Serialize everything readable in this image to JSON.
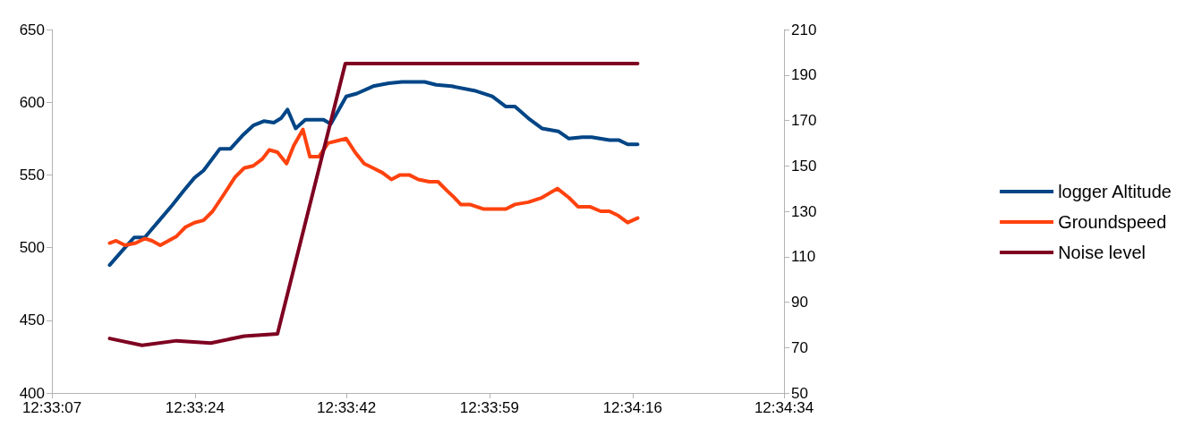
{
  "chart_data": {
    "type": "line",
    "legend": "right",
    "grid": false,
    "marker": "none",
    "line_style": "solid",
    "xlim": [
      12.551944,
      12.576111
    ],
    "xticks": [
      {
        "value": 12.551944,
        "label": "12:33:07"
      },
      {
        "value": 12.556667,
        "label": "12:33:24"
      },
      {
        "value": 12.561667,
        "label": "12:33:42"
      },
      {
        "value": 12.566389,
        "label": "12:33:59"
      },
      {
        "value": 12.571111,
        "label": "12:34:16"
      },
      {
        "value": 12.576111,
        "label": "12:34:34"
      }
    ],
    "ylim": [
      400,
      650
    ],
    "yticks": [
      400,
      450,
      500,
      550,
      600,
      650
    ],
    "y2lim": [
      50,
      210
    ],
    "y2ticks": [
      50,
      70,
      90,
      110,
      130,
      150,
      170,
      190,
      210
    ],
    "series": [
      {
        "name": "logger Altitude",
        "color": "#004586",
        "x": [
          12.55385,
          12.55427,
          12.55466,
          12.55501,
          12.55546,
          12.55591,
          12.55629,
          12.55665,
          12.55695,
          12.55749,
          12.55784,
          12.55823,
          12.55859,
          12.55894,
          12.55927,
          12.55951,
          12.55972,
          12.55999,
          12.56031,
          12.56091,
          12.56115,
          12.56166,
          12.56201,
          12.56255,
          12.56306,
          12.5635,
          12.56425,
          12.56463,
          12.56514,
          12.56589,
          12.56648,
          12.56693,
          12.56723,
          12.56767,
          12.56812,
          12.56866,
          12.56901,
          12.56946,
          12.56976,
          12.57035,
          12.57065,
          12.57095,
          12.57128
        ],
        "values": [
          488,
          498,
          507,
          507,
          518,
          529,
          539,
          548,
          553,
          568,
          568,
          577,
          584,
          587,
          586,
          589,
          595,
          582,
          588,
          588,
          585,
          604,
          606,
          611,
          613,
          614,
          614,
          612,
          611,
          608,
          604,
          597,
          597,
          589,
          582,
          580,
          575,
          576,
          576,
          574,
          574,
          571,
          571
        ]
      },
      {
        "name": "Groundspeed",
        "color": "#ff420e",
        "axis": "y2",
        "x": [
          12.55385,
          12.55406,
          12.55436,
          12.55471,
          12.55501,
          12.55525,
          12.55552,
          12.55606,
          12.55635,
          12.55665,
          12.55695,
          12.55725,
          12.5576,
          12.55799,
          12.55829,
          12.55859,
          12.55889,
          12.55912,
          12.55939,
          12.55969,
          12.55993,
          12.56023,
          12.56046,
          12.56076,
          12.56106,
          12.56166,
          12.56195,
          12.56225,
          12.56255,
          12.56285,
          12.56315,
          12.56344,
          12.56374,
          12.56404,
          12.5644,
          12.56469,
          12.56499,
          12.56523,
          12.56544,
          12.56574,
          12.56618,
          12.56693,
          12.56723,
          12.56767,
          12.56812,
          12.56863,
          12.56901,
          12.56931,
          12.5697,
          12.57006,
          12.57035,
          12.57065,
          12.57095,
          12.57128
        ],
        "values": [
          116,
          117,
          115,
          116,
          118,
          117,
          115,
          119,
          123,
          125,
          126,
          130,
          137,
          145,
          149,
          150,
          153,
          157,
          156,
          151,
          159,
          166,
          154,
          154,
          160,
          162,
          156,
          151,
          149,
          147,
          144,
          146,
          146,
          144,
          143,
          143,
          139,
          136,
          133,
          133,
          131,
          131,
          133,
          134,
          136,
          140,
          136,
          132,
          132,
          130,
          130,
          128,
          125,
          127
        ]
      },
      {
        "name": "Noise level",
        "color": "#7e0021",
        "axis": "y2",
        "x": [
          12.55385,
          12.55492,
          12.55606,
          12.55719,
          12.55829,
          12.55939,
          12.56163,
          12.57128
        ],
        "values": [
          74,
          71,
          73,
          72,
          75,
          76,
          195,
          195
        ]
      }
    ]
  }
}
